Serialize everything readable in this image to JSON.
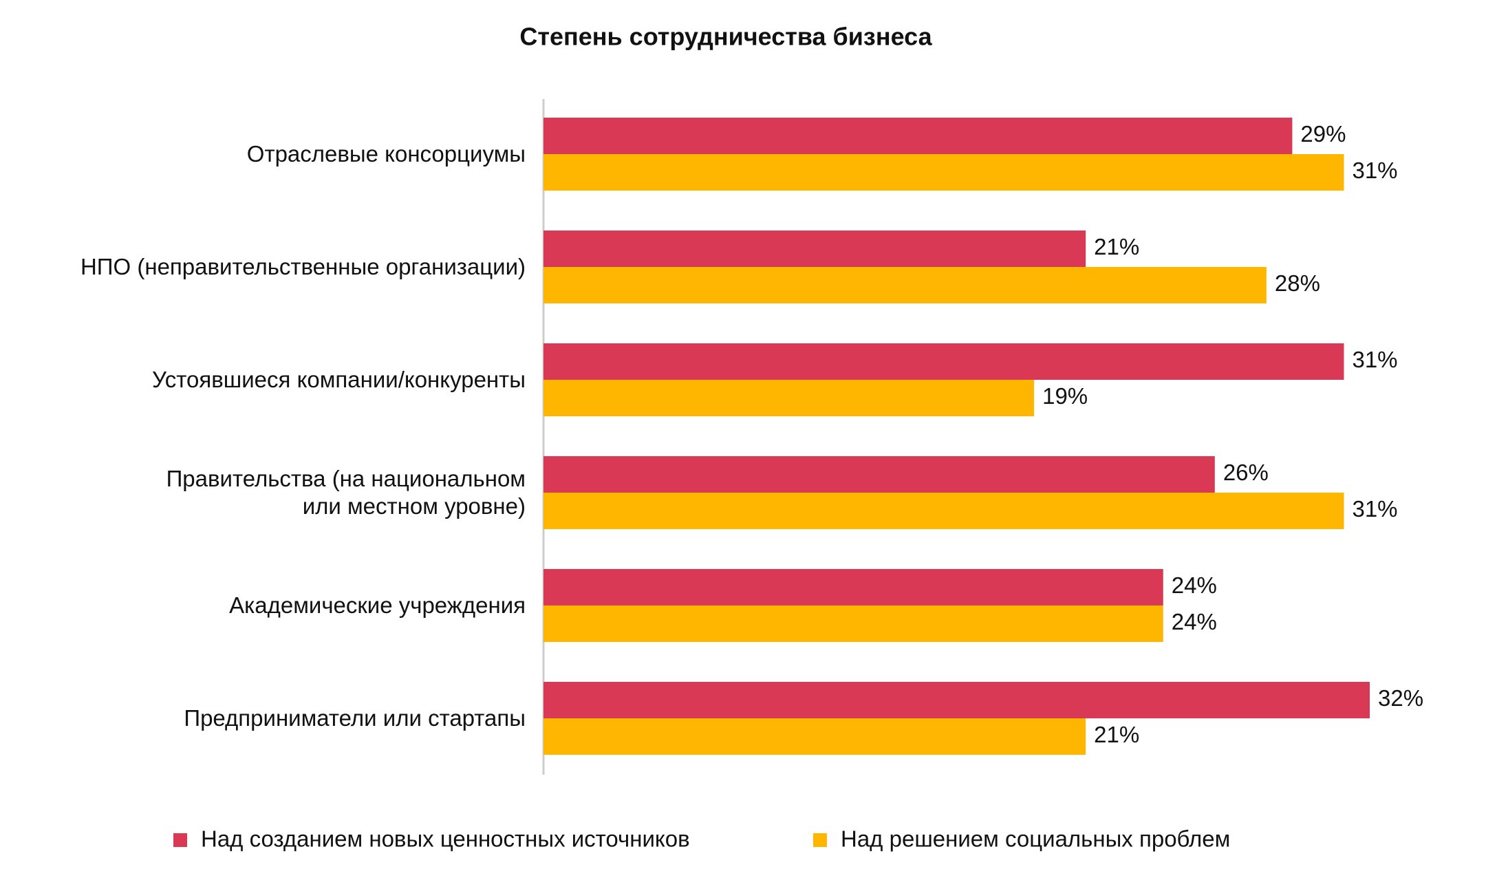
{
  "chart_data": {
    "type": "hbar",
    "title": "Степень сотрудничества бизнеса",
    "categories": [
      "Отраслевые консорциумы",
      "НПО (неправительственные организации)",
      "Устоявшиеся компании/конкуренты",
      "Правительства (на национальном\nили местном уровне)",
      "Академические учреждения",
      "Предприниматели или стартапы"
    ],
    "series": [
      {
        "name": "Над созданием новых ценностных источников",
        "color": "#d93954",
        "values": [
          29,
          21,
          31,
          26,
          24,
          32
        ],
        "value_labels": [
          "29%",
          "21%",
          "31%",
          "26%",
          "24%",
          "32%"
        ]
      },
      {
        "name": "Над решением социальных проблем",
        "color": "#ffb600",
        "values": [
          31,
          28,
          19,
          31,
          24,
          21
        ],
        "value_labels": [
          "31%",
          "28%",
          "19%",
          "31%",
          "24%",
          "21%"
        ]
      }
    ],
    "legend": "bottom"
  }
}
